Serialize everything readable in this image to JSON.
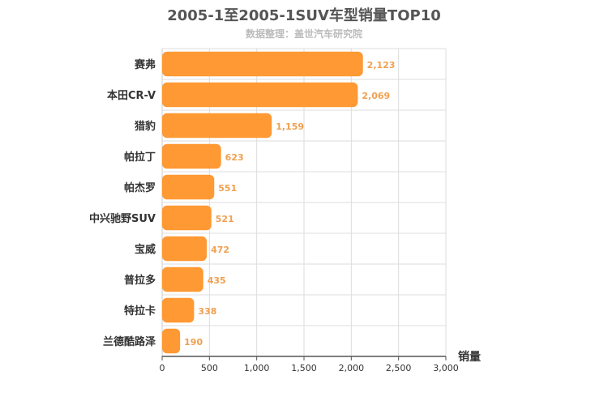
{
  "chart_data": {
    "type": "bar",
    "orientation": "horizontal",
    "title": "2005-1至2005-1SUV车型销量TOP10",
    "subtitle": "数据整理：盖世汽车研究院",
    "xlabel": "销量",
    "ylabel": "",
    "categories": [
      "赛弗",
      "本田CR-V",
      "猎豹",
      "帕拉丁",
      "帕杰罗",
      "中兴驰野SUV",
      "宝威",
      "普拉多",
      "特拉卡",
      "兰德酷路泽"
    ],
    "values": [
      2123,
      2069,
      1159,
      623,
      551,
      521,
      472,
      435,
      338,
      190
    ],
    "value_labels": [
      "2,123",
      "2,069",
      "1,159",
      "623",
      "551",
      "521",
      "472",
      "435",
      "338",
      "190"
    ],
    "xlim": [
      0,
      3000
    ],
    "xticks": [
      0,
      500,
      1000,
      1500,
      2000,
      2500,
      3000
    ],
    "xtick_labels": [
      "0",
      "500",
      "1,000",
      "1,500",
      "2,000",
      "2,500",
      "3,000"
    ],
    "grid": true,
    "legend": "none",
    "colors": {
      "bar": "#ff9933",
      "value_label": "#f0a050",
      "grid": "#dddddd"
    }
  }
}
